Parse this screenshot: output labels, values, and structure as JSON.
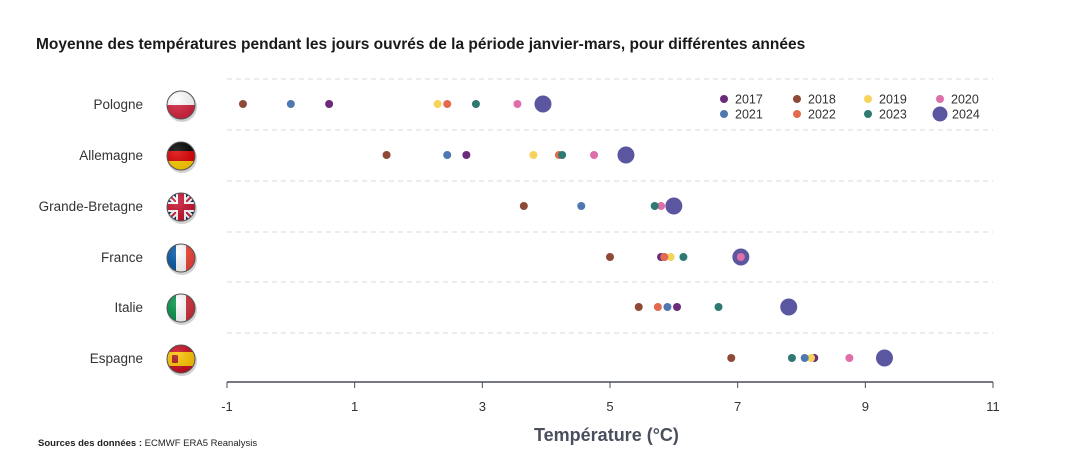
{
  "chart_data": {
    "type": "scatter",
    "title": "Moyenne des températures pendant les jours ouvrés de la période janvier-mars, pour différentes années",
    "xlabel": "Température (°C)",
    "ylabel": "",
    "xlim": [
      -1,
      11
    ],
    "xticks": [
      "-1",
      "1",
      "3",
      "5",
      "7",
      "9",
      "11"
    ],
    "categories": [
      "Pologne",
      "Allemagne",
      "Grande-Bretagne",
      "France",
      "Italie",
      "Espagne"
    ],
    "flag_icons": [
      "flag-poland-icon",
      "flag-germany-icon",
      "flag-uk-icon",
      "flag-france-icon",
      "flag-italy-icon",
      "flag-spain-icon"
    ],
    "legend_position": "top-right",
    "grid": "dashed horizontal",
    "series": [
      {
        "name": "2017",
        "color": "#6b2a7a",
        "values": [
          0.6,
          2.75,
          null,
          5.8,
          6.05,
          8.2
        ]
      },
      {
        "name": "2018",
        "color": "#8e4a37",
        "values": [
          -0.75,
          1.5,
          3.65,
          5.0,
          5.45,
          6.9
        ]
      },
      {
        "name": "2019",
        "color": "#f7d35c",
        "values": [
          2.3,
          3.8,
          null,
          5.95,
          null,
          8.15
        ]
      },
      {
        "name": "2020",
        "color": "#de6fa8",
        "values": [
          3.55,
          4.75,
          5.8,
          7.05,
          null,
          8.75
        ]
      },
      {
        "name": "2021",
        "color": "#4f78b0",
        "values": [
          0.0,
          2.45,
          4.55,
          5.85,
          5.9,
          8.05
        ]
      },
      {
        "name": "2022",
        "color": "#e36a4f",
        "values": [
          2.45,
          4.2,
          6.0,
          5.85,
          5.75,
          null
        ]
      },
      {
        "name": "2023",
        "color": "#2e7a72",
        "values": [
          2.9,
          4.25,
          5.7,
          6.15,
          6.7,
          7.85
        ]
      },
      {
        "name": "2024",
        "color": "#5a57a0",
        "values": [
          3.95,
          5.25,
          6.0,
          7.05,
          7.8,
          9.3
        ]
      }
    ]
  },
  "source": {
    "label": "Sources des données :",
    "value": "ECMWF ERA5 Reanalysis"
  }
}
